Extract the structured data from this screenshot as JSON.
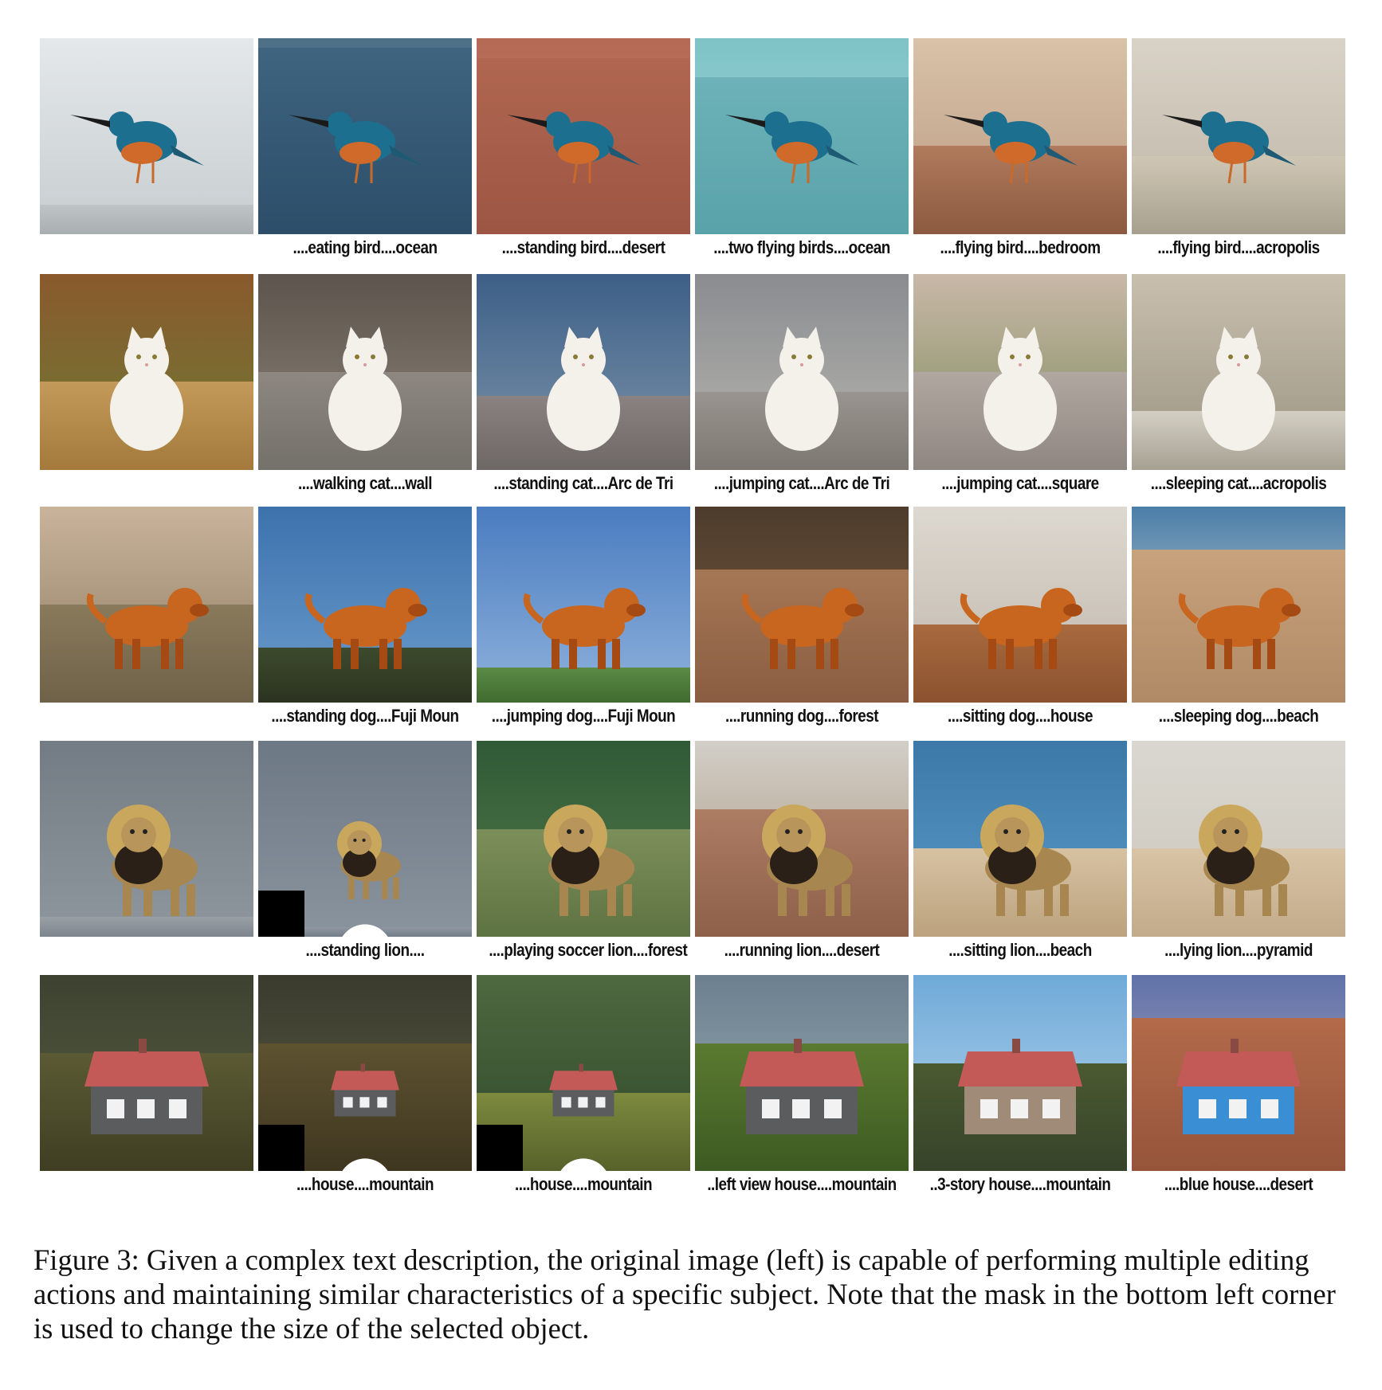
{
  "figure": {
    "caption": "Figure 3: Given a complex text description, the original image (left) is capable of performing multiple editing actions and maintaining similar characteristics of a specific subject. Note that the mask in the bottom left corner is used to change the size of the selected object."
  },
  "rows": [
    {
      "subject": "bird",
      "captions": [
        "",
        "....eating bird....ocean",
        "....standing bird....desert",
        "....two flying birds....ocean",
        "....flying bird....bedroom",
        "....flying bird....acropolis"
      ]
    },
    {
      "subject": "cat",
      "captions": [
        "",
        "....walking cat....wall",
        "....standing cat....Arc de Tri",
        "....jumping cat....Arc de Tri",
        "....jumping cat....square",
        "....sleeping cat....acropolis"
      ]
    },
    {
      "subject": "dog",
      "captions": [
        "",
        "....standing dog....Fuji Moun",
        "....jumping dog....Fuji Moun",
        "....running dog....forest",
        "....sitting dog....house",
        "....sleeping dog....beach"
      ]
    },
    {
      "subject": "lion",
      "captions": [
        "",
        "....standing lion....",
        "....playing soccer lion....forest",
        "....running lion....desert",
        "....sitting lion....beach",
        "....lying lion....pyramid"
      ]
    },
    {
      "subject": "house",
      "captions": [
        "",
        "....house....mountain",
        "....house....mountain",
        "..left view house....mountain",
        "..3-story house....mountain",
        "....blue house....desert"
      ]
    }
  ]
}
